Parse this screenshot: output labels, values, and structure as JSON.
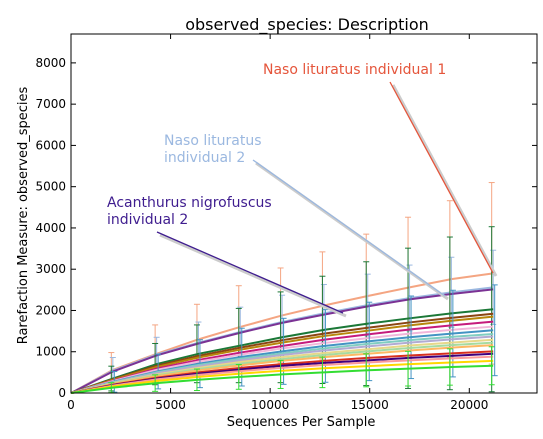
{
  "chart_data": {
    "type": "line",
    "title": "observed_species: Description",
    "xlabel": "Sequences Per Sample",
    "ylabel": "Rarefaction Measure: observed_species",
    "xlim": [
      0,
      23400
    ],
    "ylim": [
      0,
      8700
    ],
    "xticks": [
      0,
      5000,
      10000,
      15000,
      20000
    ],
    "yticks": [
      0,
      1000,
      2000,
      3000,
      4000,
      5000,
      6000,
      7000,
      8000
    ],
    "x": [
      10,
      2100,
      4300,
      6400,
      8500,
      10600,
      12700,
      14900,
      17000,
      19100,
      21200
    ],
    "series": [
      {
        "color": "#f4a582",
        "values": [
          0,
          560,
          950,
          1300,
          1600,
          1880,
          2120,
          2350,
          2560,
          2760,
          2900
        ],
        "err": [
          0,
          420,
          700,
          850,
          1000,
          1150,
          1300,
          1500,
          1700,
          1900,
          2200
        ]
      },
      {
        "color": "#9bb8e0",
        "values": [
          0,
          540,
          930,
          1220,
          1480,
          1720,
          1930,
          2130,
          2300,
          2440,
          2560
        ],
        "err": [
          0,
          320,
          420,
          500,
          600,
          650,
          700,
          750,
          800,
          850,
          900
        ]
      },
      {
        "color": "#7b3294",
        "values": [
          0,
          520,
          910,
          1200,
          1460,
          1700,
          1900,
          2100,
          2270,
          2400,
          2510
        ],
        "err": [
          0,
          0,
          0,
          0,
          0,
          0,
          0,
          0,
          0,
          0,
          0
        ]
      },
      {
        "color": "#1b7837",
        "values": [
          0,
          350,
          700,
          950,
          1150,
          1350,
          1530,
          1680,
          1810,
          1930,
          2030
        ],
        "err": [
          0,
          300,
          500,
          700,
          900,
          1100,
          1300,
          1500,
          1700,
          1850,
          2000
        ]
      },
      {
        "color": "#8b4513",
        "values": [
          0,
          330,
          660,
          900,
          1100,
          1280,
          1440,
          1580,
          1710,
          1820,
          1920
        ],
        "err": [
          0,
          0,
          0,
          0,
          0,
          0,
          0,
          0,
          0,
          0,
          0
        ]
      },
      {
        "color": "#b8860b",
        "values": [
          0,
          320,
          630,
          860,
          1050,
          1220,
          1380,
          1510,
          1640,
          1750,
          1850
        ],
        "err": [
          0,
          0,
          0,
          0,
          0,
          0,
          0,
          0,
          0,
          0,
          0
        ]
      },
      {
        "color": "#c51b7d",
        "values": [
          0,
          300,
          590,
          800,
          980,
          1140,
          1290,
          1420,
          1540,
          1640,
          1730
        ],
        "err": [
          0,
          0,
          0,
          0,
          0,
          0,
          0,
          0,
          0,
          0,
          0
        ]
      },
      {
        "color": "#f1b6da",
        "values": [
          0,
          290,
          560,
          760,
          930,
          1080,
          1210,
          1330,
          1440,
          1530,
          1610
        ],
        "err": [
          0,
          0,
          0,
          0,
          0,
          0,
          0,
          0,
          0,
          0,
          0
        ]
      },
      {
        "color": "#4393c3",
        "values": [
          0,
          270,
          520,
          710,
          870,
          1010,
          1140,
          1250,
          1350,
          1440,
          1520
        ],
        "err": [
          0,
          250,
          420,
          580,
          700,
          800,
          880,
          950,
          1000,
          1050,
          1100
        ]
      },
      {
        "color": "#80cdc1",
        "values": [
          0,
          260,
          500,
          680,
          830,
          960,
          1080,
          1190,
          1280,
          1360,
          1430
        ],
        "err": [
          0,
          0,
          0,
          0,
          0,
          0,
          0,
          0,
          0,
          0,
          0
        ]
      },
      {
        "color": "#b2abd2",
        "values": [
          0,
          250,
          480,
          650,
          790,
          920,
          1030,
          1130,
          1220,
          1300,
          1370
        ],
        "err": [
          0,
          0,
          0,
          0,
          0,
          0,
          0,
          0,
          0,
          0,
          0
        ]
      },
      {
        "color": "#e6d88a",
        "values": [
          0,
          240,
          450,
          610,
          750,
          870,
          970,
          1060,
          1150,
          1220,
          1290
        ],
        "err": [
          0,
          0,
          0,
          0,
          0,
          0,
          0,
          0,
          0,
          0,
          0
        ]
      },
      {
        "color": "#a6dba0",
        "values": [
          0,
          230,
          430,
          580,
          710,
          820,
          920,
          1010,
          1090,
          1160,
          1220
        ],
        "err": [
          0,
          0,
          0,
          0,
          0,
          0,
          0,
          0,
          0,
          0,
          0
        ]
      },
      {
        "color": "#fdb863",
        "values": [
          0,
          220,
          410,
          550,
          670,
          780,
          870,
          950,
          1030,
          1100,
          1160
        ],
        "err": [
          0,
          0,
          0,
          0,
          0,
          0,
          0,
          0,
          0,
          0,
          0
        ]
      },
      {
        "color": "#d7301f",
        "values": [
          0,
          200,
          370,
          500,
          610,
          700,
          780,
          850,
          910,
          960,
          1010
        ],
        "err": [
          0,
          0,
          0,
          0,
          0,
          0,
          0,
          0,
          0,
          0,
          0
        ]
      },
      {
        "color": "#3f007d",
        "values": [
          0,
          190,
          350,
          470,
          570,
          660,
          730,
          790,
          850,
          900,
          950
        ],
        "err": [
          0,
          0,
          0,
          0,
          0,
          0,
          0,
          0,
          0,
          0,
          0
        ]
      },
      {
        "color": "#fb9a99",
        "values": [
          0,
          180,
          330,
          440,
          530,
          610,
          680,
          740,
          790,
          840,
          880
        ],
        "err": [
          0,
          0,
          0,
          0,
          0,
          0,
          0,
          0,
          0,
          0,
          0
        ]
      },
      {
        "color": "#ffd700",
        "values": [
          0,
          160,
          290,
          390,
          470,
          540,
          600,
          650,
          700,
          740,
          780
        ],
        "err": [
          0,
          0,
          0,
          0,
          0,
          0,
          0,
          0,
          0,
          0,
          0
        ]
      },
      {
        "color": "#33dd33",
        "values": [
          0,
          130,
          240,
          320,
          390,
          450,
          500,
          550,
          590,
          630,
          660
        ],
        "err": [
          0,
          120,
          200,
          260,
          300,
          340,
          370,
          400,
          420,
          440,
          460
        ]
      }
    ],
    "annotations": [
      {
        "lines": [
          "Naso lituratus individual 1"
        ],
        "color": "#e5553b",
        "tx": 0.0,
        "ty": 0.0,
        "px": 0.0,
        "py": 0.0
      },
      {
        "lines": [
          "Naso lituratus",
          "individual 2"
        ],
        "color": "#9bb8e0"
      },
      {
        "lines": [
          "Acanthurus nigrofuscus",
          "individual 2"
        ],
        "color": "#3f1d8f"
      }
    ],
    "grid": false,
    "legend": "none"
  }
}
